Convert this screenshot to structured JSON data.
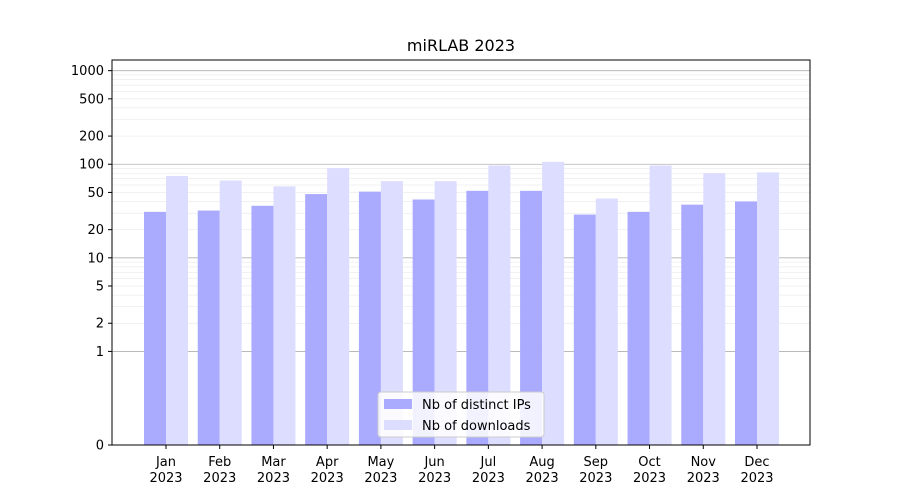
{
  "chart_data": {
    "type": "bar",
    "title": "miRLAB 2023",
    "xlabel": "",
    "ylabel": "",
    "y_scale": "symlog",
    "ylim": [
      0,
      1300
    ],
    "yticks": [
      0,
      1,
      2,
      5,
      10,
      20,
      50,
      100,
      200,
      500,
      1000
    ],
    "ytick_labels": [
      "0",
      "1",
      "2",
      "5",
      "10",
      "20",
      "50",
      "100",
      "200",
      "500",
      "1000"
    ],
    "grid": true,
    "legend_position": "bottom-center",
    "categories": [
      "Jan\n2023",
      "Feb\n2023",
      "Mar\n2023",
      "Apr\n2023",
      "May\n2023",
      "Jun\n2023",
      "Jul\n2023",
      "Aug\n2023",
      "Sep\n2023",
      "Oct\n2023",
      "Nov\n2023",
      "Dec\n2023"
    ],
    "category_lines": [
      [
        "Jan",
        "2023"
      ],
      [
        "Feb",
        "2023"
      ],
      [
        "Mar",
        "2023"
      ],
      [
        "Apr",
        "2023"
      ],
      [
        "May",
        "2023"
      ],
      [
        "Jun",
        "2023"
      ],
      [
        "Jul",
        "2023"
      ],
      [
        "Aug",
        "2023"
      ],
      [
        "Sep",
        "2023"
      ],
      [
        "Oct",
        "2023"
      ],
      [
        "Nov",
        "2023"
      ],
      [
        "Dec",
        "2023"
      ]
    ],
    "series": [
      {
        "name": "Nb of distinct IPs",
        "color": "#aaaaff",
        "values": [
          31,
          32,
          36,
          48,
          51,
          42,
          52,
          52,
          29,
          31,
          37,
          40
        ]
      },
      {
        "name": "Nb of downloads",
        "color": "#ddddff",
        "values": [
          75,
          67,
          58,
          91,
          66,
          66,
          97,
          106,
          43,
          97,
          80,
          82
        ]
      }
    ]
  }
}
